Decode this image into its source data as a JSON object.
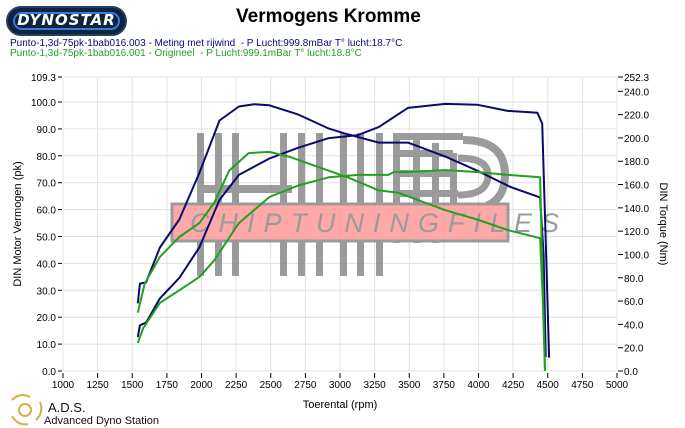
{
  "header": {
    "logo_text": "DYNOSTAR",
    "title": "Vermogens Kromme",
    "runs": [
      {
        "label": "Punto-1,3d-75pk-1bab016.003 - Meting met rijwind  - P Lucht:999.8mBar T° lucht:18.7°C",
        "color": "#0a0a6e"
      },
      {
        "label": "Punto-1,3d-75pk-1bab016.001 - Origineel  - P Lucht:999.1mBar T° lucht:18.8°C",
        "color": "#22a022"
      }
    ]
  },
  "footer": {
    "brand": "A.D.S.",
    "subtitle": "Advanced Dyno Station"
  },
  "watermark": {
    "text": "CHIPTUNINGFILES"
  },
  "chart_data": {
    "type": "line",
    "title": "Vermogens Kromme",
    "xlabel": "Toerental (rpm)",
    "ylabel": "DIN Motor Vermogen (pk)",
    "y2label": "DIN Torque (Nm)",
    "xlim": [
      1000,
      5000
    ],
    "ylim": [
      0,
      109.3
    ],
    "y2lim": [
      0,
      252.3
    ],
    "xticks": [
      1000,
      1250,
      1500,
      1750,
      2000,
      2250,
      2500,
      2750,
      3000,
      3250,
      3500,
      3750,
      4000,
      4250,
      4500,
      4750,
      5000
    ],
    "yticks": [
      "0.0",
      "10.0",
      "20.0",
      "30.0",
      "40.0",
      "50.0",
      "60.0",
      "70.0",
      "80.0",
      "90.0",
      "100.0",
      "109.3"
    ],
    "y2ticks": [
      "0.0",
      "20.0",
      "40.0",
      "60.0",
      "80.0",
      "100.0",
      "120.0",
      "140.0",
      "160.0",
      "180.0",
      "200.0",
      "220.0",
      "240.0",
      "252.3"
    ],
    "grid": true,
    "series": [
      {
        "run": 1,
        "quantity": "power",
        "axis": "left",
        "color": "#0a0a6e",
        "x": [
          1540,
          1555,
          1600,
          1700,
          1840,
          1985,
          2130,
          2270,
          2490,
          2700,
          2920,
          3130,
          3280,
          3490,
          3760,
          3990,
          4210,
          4425,
          4460,
          4490,
          4510
        ],
        "y": [
          12.6,
          17,
          18,
          27,
          34.6,
          46,
          63.6,
          72.9,
          79,
          83,
          86.6,
          87.7,
          90.7,
          97.8,
          99.3,
          99,
          96.7,
          96,
          92,
          40,
          5
        ]
      },
      {
        "run": 1,
        "quantity": "torque",
        "axis": "right",
        "color": "#0a0a6e",
        "x": [
          1540,
          1555,
          1600,
          1700,
          1840,
          1985,
          2130,
          2270,
          2380,
          2490,
          2700,
          2920,
          3030,
          3280,
          3490,
          3760,
          3990,
          4230,
          4445,
          4470,
          4485
        ],
        "y": [
          58,
          75,
          76,
          106,
          130,
          170,
          215,
          227,
          229,
          228,
          220,
          208,
          204,
          196,
          196,
          184,
          172,
          158,
          149,
          100,
          12
        ]
      },
      {
        "run": 2,
        "quantity": "power",
        "axis": "left",
        "color": "#22a022",
        "x": [
          1540,
          1580,
          1700,
          1840,
          1985,
          2090,
          2270,
          2490,
          2700,
          2920,
          3130,
          3350,
          3390,
          3490,
          3760,
          3990,
          4210,
          4445,
          4465,
          4480
        ],
        "y": [
          10.4,
          16,
          25.3,
          30,
          35,
          41,
          55,
          64.7,
          69,
          72,
          72.9,
          72.9,
          74,
          74,
          74.7,
          74,
          72.9,
          72,
          30,
          0
        ]
      },
      {
        "run": 2,
        "quantity": "torque",
        "axis": "right",
        "color": "#22a022",
        "x": [
          1540,
          1590,
          1700,
          1840,
          1985,
          2090,
          2200,
          2340,
          2490,
          2630,
          2845,
          3060,
          3280,
          3420,
          3760,
          3990,
          4210,
          4445,
          4465,
          4480
        ],
        "y": [
          50,
          75,
          98,
          115,
          127,
          144,
          172,
          187,
          188,
          184,
          175,
          166,
          155,
          153,
          138,
          130,
          121,
          114,
          60,
          0
        ]
      }
    ]
  }
}
